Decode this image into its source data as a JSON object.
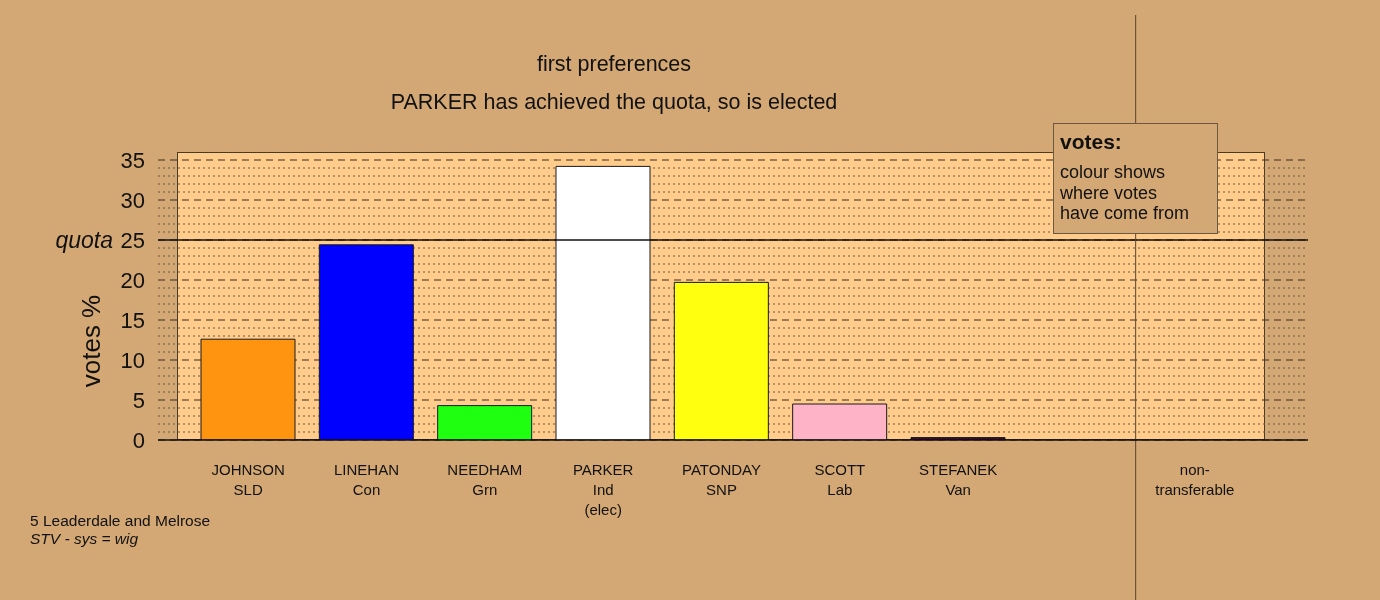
{
  "chart_data": {
    "type": "bar",
    "title": "first preferences",
    "subtitle": "PARKER has achieved the quota, so is elected",
    "ylabel": "votes %",
    "categories": [
      "JOHNSON\nSLD",
      "LINEHAN\nCon",
      "NEEDHAM\nGrn",
      "PARKER\nInd\n(elec)",
      "PATONDAY\nSNP",
      "SCOTT\nLab",
      "STEFANEK\nVan",
      null,
      "non-\ntransferable"
    ],
    "values": [
      12.6,
      24.4,
      4.3,
      34.2,
      19.7,
      4.5,
      0.3,
      null,
      0
    ],
    "colors": [
      "#ff9410",
      "#0000ff",
      "#1fff10",
      "#ffffff",
      "#ffff10",
      "#ffb3c6",
      "#3a0a3a",
      null,
      null
    ],
    "ylim": [
      0,
      36
    ],
    "yticks": [
      0,
      {
        "value": 1,
        "label": null
      },
      {
        "value": 2,
        "label": null
      },
      {
        "value": 3,
        "label": null
      },
      {
        "value": 4,
        "label": null
      },
      5,
      {
        "value": 6,
        "label": null
      },
      {
        "value": 7,
        "label": null
      },
      {
        "value": 8,
        "label": null
      },
      {
        "value": 9,
        "label": null
      },
      10,
      {
        "value": 11,
        "label": null
      },
      {
        "value": 12,
        "label": null
      },
      {
        "value": 13,
        "label": null
      },
      {
        "value": 14,
        "label": null
      },
      15,
      {
        "value": 16,
        "label": null
      },
      {
        "value": 17,
        "label": null
      },
      {
        "value": 18,
        "label": null
      },
      {
        "value": 19,
        "label": null
      },
      20,
      {
        "value": 21,
        "label": null
      },
      {
        "value": 22,
        "label": null
      },
      {
        "value": 23,
        "label": null
      },
      {
        "value": 24,
        "label": null
      },
      25,
      {
        "value": 26,
        "label": null
      },
      {
        "value": 27,
        "label": null
      },
      {
        "value": 28,
        "label": null
      },
      {
        "value": 29,
        "label": null
      },
      30,
      {
        "value": 31,
        "label": null
      },
      {
        "value": 32,
        "label": null
      },
      {
        "value": 33,
        "label": null
      },
      {
        "value": 34,
        "label": null
      },
      35
    ],
    "grid": "y",
    "ref_lines": [
      {
        "axis": "y",
        "value": 25,
        "label": "quota",
        "color": "#111111"
      },
      {
        "axis": "x",
        "value": "non-\ntransferable",
        "color": "#5a4430"
      }
    ],
    "annotations": [
      "votes:",
      "colour shows where votes have come from",
      "5 Leaderdale and Melrose",
      "STV - sys = wig"
    ]
  }
}
